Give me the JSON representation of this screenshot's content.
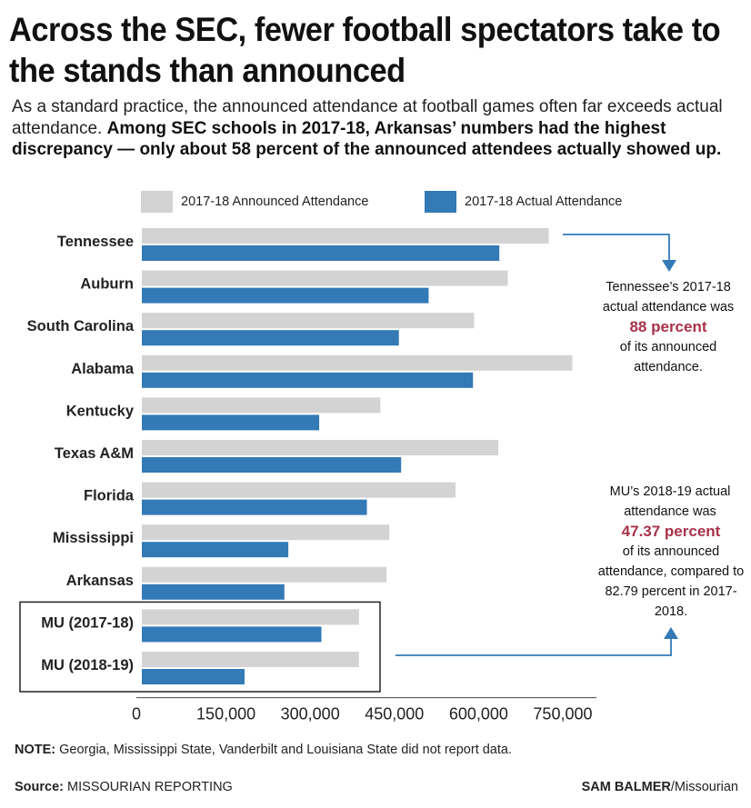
{
  "headline": "Across the SEC, fewer football spectators take to the stands than announced",
  "intro": {
    "plain": "As a standard practice, the announced attendance at football games often far exceeds actual attendance. ",
    "bold": "Among SEC schools in 2017-18, Arkansas’ numbers had the highest discrepancy — only about 58 percent of the announced attendees actually showed up."
  },
  "colors": {
    "announced": "#d3d3d3",
    "actual": "#337ab7",
    "highlight": "#a8324a"
  },
  "annotations": {
    "tennessee": {
      "before": "Tennessee’s 2017-18 actual attendance was",
      "pct": "88 percent",
      "after": "of its announced attendance."
    },
    "mu": {
      "before": "MU’s 2018-19 actual attendance was",
      "pct": "47.37 percent",
      "after": "of its announced attendance, compared to 82.79 percent in 2017-2018."
    }
  },
  "note": {
    "label": "NOTE:",
    "text": " Georgia, Mississippi State, Vanderbilt and Louisiana State did not report data."
  },
  "source": {
    "label": "Source:",
    "text": " MISSOURIAN REPORTING"
  },
  "credit": {
    "name": "SAM BALMER",
    "outlet": "/Missourian"
  },
  "chart_data": {
    "type": "bar",
    "orientation": "horizontal",
    "categories": [
      "Tennessee",
      "Auburn",
      "South Carolina",
      "Alabama",
      "Kentucky",
      "Texas A&M",
      "Florida",
      "Mississippi",
      "Arkansas",
      "MU (2017-18)",
      "MU (2018-19)"
    ],
    "series": [
      {
        "name": "2017-18 Announced Attendance",
        "color": "#d3d3d3",
        "values": [
          725000,
          652000,
          592000,
          767000,
          425000,
          635000,
          559000,
          441000,
          436000,
          387000,
          387000
        ]
      },
      {
        "name": "2017-18 Actual Attendance",
        "color": "#337ab7",
        "values": [
          637000,
          511000,
          458000,
          590000,
          316000,
          462000,
          401000,
          261000,
          254000,
          320000,
          183000
        ]
      }
    ],
    "xticks": [
      "0",
      "150,000",
      "300,000",
      "450,000",
      "600,000",
      "750,000"
    ],
    "xtick_values": [
      0,
      150000,
      300000,
      450000,
      600000,
      750000
    ],
    "xlim": [
      0,
      810000
    ],
    "grid": false,
    "legend": "top",
    "highlight_box_categories": [
      "MU (2017-18)",
      "MU (2018-19)"
    ]
  }
}
